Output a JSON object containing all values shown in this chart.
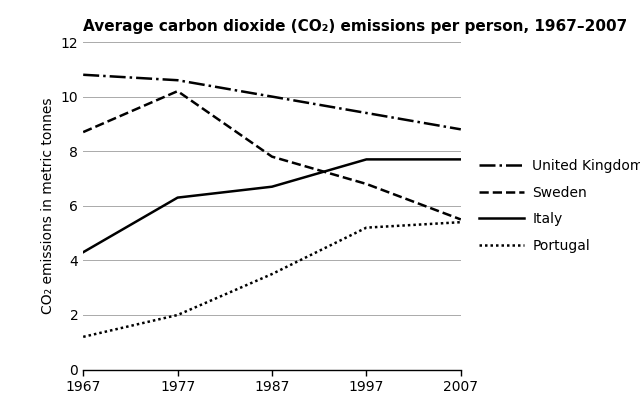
{
  "title": "Average carbon dioxide (CO₂) emissions per person, 1967–2007",
  "ylabel": "CO₂ emissions in metric tonnes",
  "years": [
    1967,
    1977,
    1987,
    1997,
    2007
  ],
  "united_kingdom": [
    10.8,
    10.6,
    10.0,
    9.4,
    8.8
  ],
  "sweden": [
    8.7,
    10.2,
    7.8,
    6.8,
    5.5
  ],
  "italy": [
    4.3,
    6.3,
    6.7,
    7.7,
    7.7
  ],
  "portugal": [
    1.2,
    2.0,
    3.5,
    5.2,
    5.4
  ],
  "ylim": [
    0,
    12
  ],
  "xlim": [
    1967,
    2007
  ],
  "yticks": [
    0,
    2,
    4,
    6,
    8,
    10,
    12
  ],
  "xticks": [
    1967,
    1977,
    1987,
    1997,
    2007
  ],
  "legend_labels": [
    "United Kingdom",
    "Sweden",
    "Italy",
    "Portugal"
  ],
  "line_color": "#000000",
  "background_color": "#ffffff",
  "title_fontsize": 11,
  "axis_fontsize": 10,
  "legend_fontsize": 10,
  "linewidth": 1.8,
  "grid_color": "#aaaaaa",
  "grid_linewidth": 0.7
}
